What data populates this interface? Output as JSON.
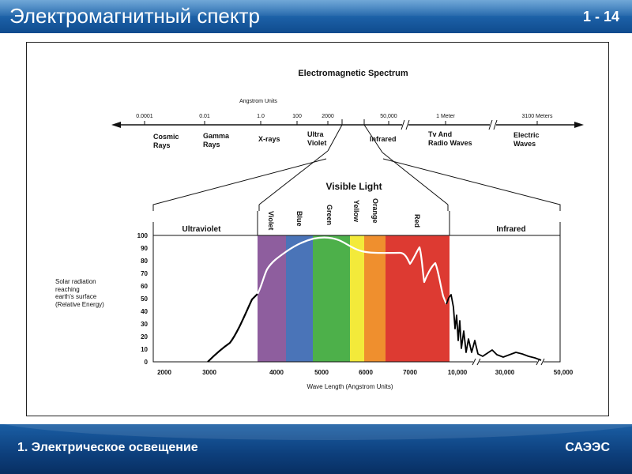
{
  "header": {
    "title": "Электромагнитный спектр",
    "slide_number": "1 - 14"
  },
  "footer": {
    "left": "1. Электрическое освещение",
    "right": "САЭЭС"
  },
  "spectrum": {
    "title": "Electromagnetic Spectrum",
    "scale_label": "Angstrom Units",
    "ticks": [
      "0.0001",
      "0.01",
      "1.0",
      "100",
      "2000",
      "50,000",
      "1 Meter",
      "3100 Meters"
    ],
    "regions": [
      {
        "line1": "Cosmic",
        "line2": "Rays"
      },
      {
        "line1": "Gamma",
        "line2": "Rays"
      },
      {
        "line1": "X-rays",
        "line2": ""
      },
      {
        "line1": "Ultra",
        "line2": "Violet"
      },
      {
        "line1": "Infrared",
        "line2": ""
      },
      {
        "line1": "Tv And",
        "line2": "Radio Waves"
      },
      {
        "line1": "Electric",
        "line2": "Waves"
      }
    ]
  },
  "visible": {
    "title": "Visible Light",
    "bands": [
      {
        "name": "Violet",
        "color": "#8e5e9e"
      },
      {
        "name": "Blue",
        "color": "#4a74b8"
      },
      {
        "name": "Green",
        "color": "#4db04a"
      },
      {
        "name": "Yellow",
        "color": "#f3ea3a"
      },
      {
        "name": "Orange",
        "color": "#ef8f2e"
      },
      {
        "name": "Red",
        "color": "#dd3a32"
      }
    ],
    "ultraviolet_label": "Ultraviolet",
    "infrared_label": "Infrared"
  },
  "chart": {
    "y_ticks": [
      "100",
      "90",
      "80",
      "70",
      "60",
      "50",
      "40",
      "30",
      "20",
      "10",
      "0"
    ],
    "x_ticks": [
      "2000",
      "3000",
      "4000",
      "5000",
      "6000",
      "7000",
      "10,000",
      "30,000",
      "50,000"
    ],
    "ylabel_lines": [
      "Solar radiation",
      "reaching",
      "earth's surface",
      "(Relative Energy)"
    ],
    "xlabel": "Wave Length (Angstrom Units)"
  }
}
